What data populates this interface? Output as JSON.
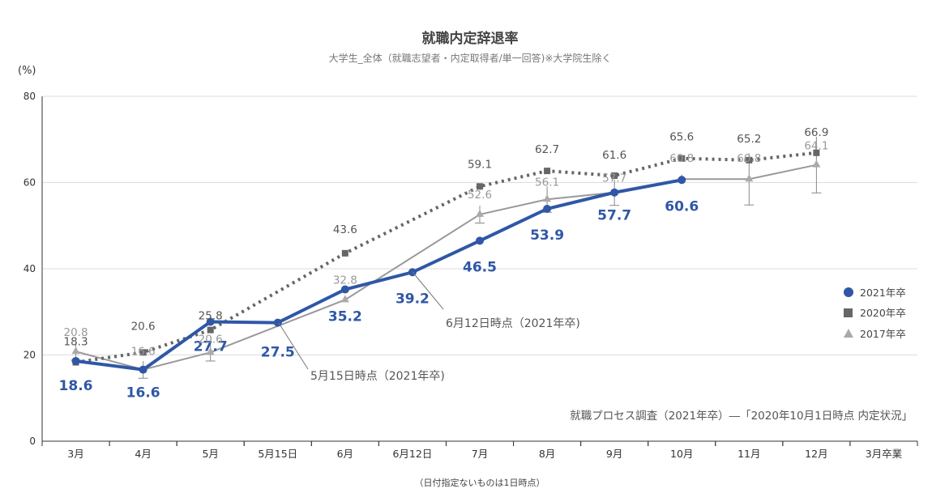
{
  "chart_data": {
    "type": "line",
    "title": "就職内定辞退率",
    "subtitle": "大学生_全体（就職志望者・内定取得者/単一回答)※大学院生除く",
    "ylabel": "(%)",
    "ylim": [
      0,
      80
    ],
    "yticks": [
      "0",
      "20",
      "40",
      "60",
      "80"
    ],
    "grid": true,
    "legend_position": "right",
    "categories": [
      "3月",
      "4月",
      "5月",
      "5月15日",
      "6月",
      "6月12日",
      "7月",
      "8月",
      "9月",
      "10月",
      "11月",
      "12月",
      "3月卒業"
    ],
    "series": [
      {
        "name": "2021年卒",
        "values": [
          18.6,
          16.6,
          27.7,
          27.5,
          35.2,
          39.2,
          46.5,
          53.9,
          57.7,
          60.6,
          null,
          null,
          null
        ],
        "labels": [
          "18.6",
          "16.6",
          "27.7",
          "27.5",
          "35.2",
          "39.2",
          "46.5",
          "53.9",
          "57.7",
          "60.6",
          "",
          "",
          ""
        ]
      },
      {
        "name": "2020年卒",
        "values": [
          18.3,
          20.6,
          25.8,
          null,
          43.6,
          null,
          59.1,
          62.7,
          61.6,
          65.6,
          65.2,
          66.9,
          null
        ],
        "labels": [
          "18.3",
          "20.6",
          "25.8",
          "",
          "43.6",
          "",
          "59.1",
          "62.7",
          "61.6",
          "65.6",
          "65.2",
          "66.9",
          ""
        ]
      },
      {
        "name": "2017年卒",
        "values": [
          20.8,
          16.6,
          20.6,
          null,
          32.8,
          null,
          52.6,
          56.1,
          57.7,
          60.8,
          60.8,
          64.1,
          null
        ],
        "labels": [
          "20.8",
          "16.6",
          "20.6",
          "",
          "32.8",
          "",
          "52.6",
          "56.1",
          "57.7",
          "60.8",
          "60.8",
          "64.1",
          ""
        ]
      }
    ],
    "annotations": [
      "5月15日時点（2021年卒)",
      "6月12日時点（2021年卒)"
    ],
    "source": "就職プロセス調査（2021年卒）―「2020年10月1日時点 内定状況」",
    "note": "（日付指定ないものは1日時点）",
    "colors": {
      "s2021": "#2f57a6",
      "s2020": "#666666",
      "s2017": "#999999",
      "grid": "#dddddd"
    }
  }
}
